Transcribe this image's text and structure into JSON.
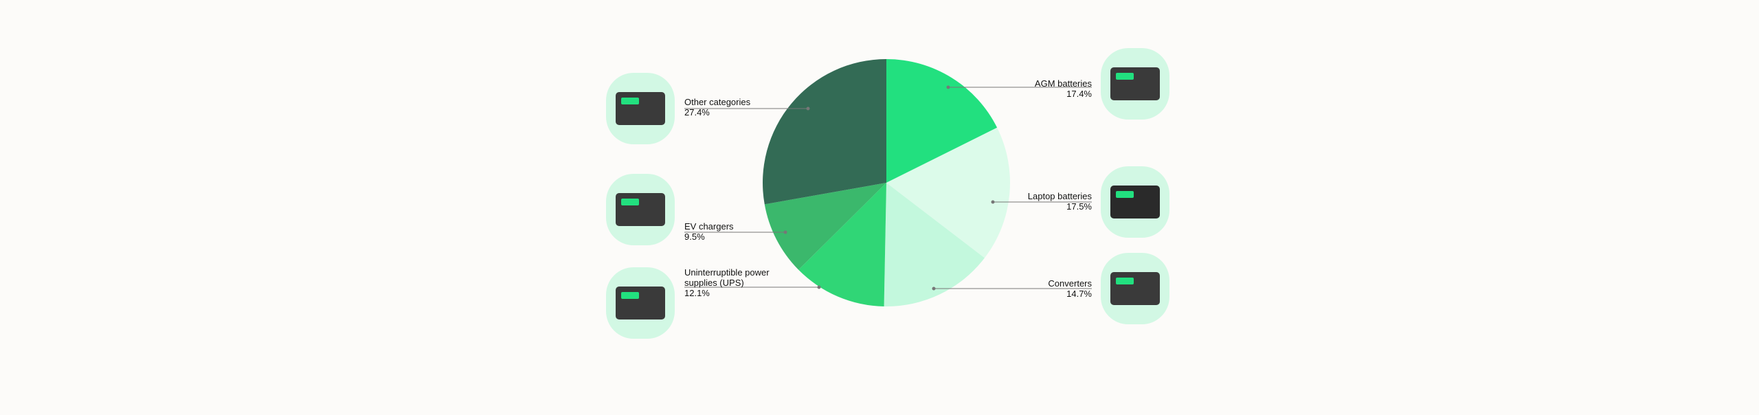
{
  "chart_data": {
    "type": "pie",
    "categories": [
      "AGM batteries",
      "Laptop batteries",
      "Converters",
      "Uninterruptible power supplies (UPS)",
      "EV chargers",
      "Other categories"
    ],
    "values": [
      17.4,
      17.5,
      14.7,
      12.1,
      9.5,
      27.4
    ],
    "value_labels": [
      "17.4%",
      "17.5%",
      "14.7%",
      "12.1%",
      "9.5%",
      "27.4%"
    ],
    "colors": [
      "#22e07f",
      "#dcfbea",
      "#c3f8dd",
      "#30d676",
      "#3bb86c",
      "#336b55"
    ]
  }
}
